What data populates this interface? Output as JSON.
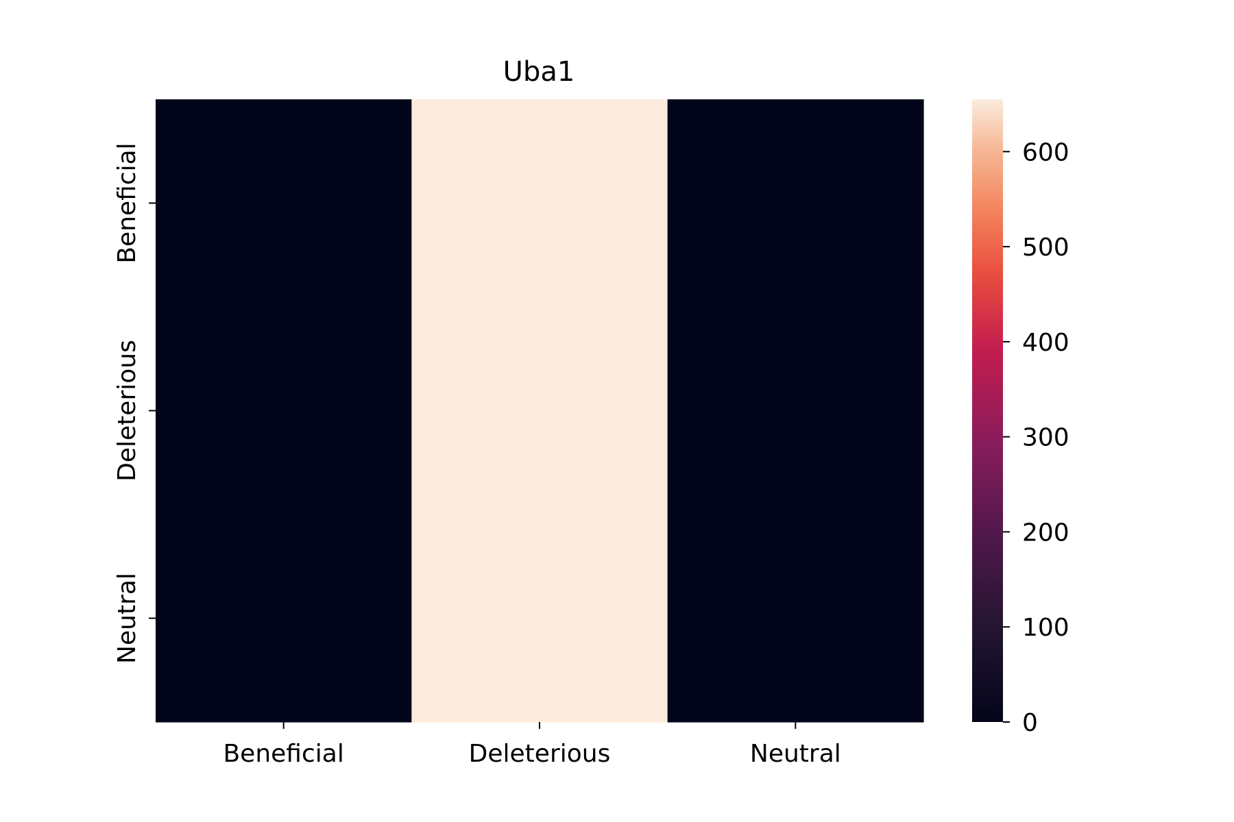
{
  "chart_data": {
    "type": "heatmap",
    "title": "Uba1",
    "x_categories": [
      "Beneficial",
      "Deleterious",
      "Neutral"
    ],
    "y_categories": [
      "Beneficial",
      "Deleterious",
      "Neutral"
    ],
    "values": [
      [
        0,
        655,
        0
      ],
      [
        0,
        655,
        0
      ],
      [
        0,
        655,
        0
      ]
    ],
    "colorbar": {
      "min": 0,
      "max": 655,
      "ticks": [
        0,
        100,
        200,
        300,
        400,
        500,
        600
      ],
      "colormap": "rocket"
    },
    "grid": false
  }
}
